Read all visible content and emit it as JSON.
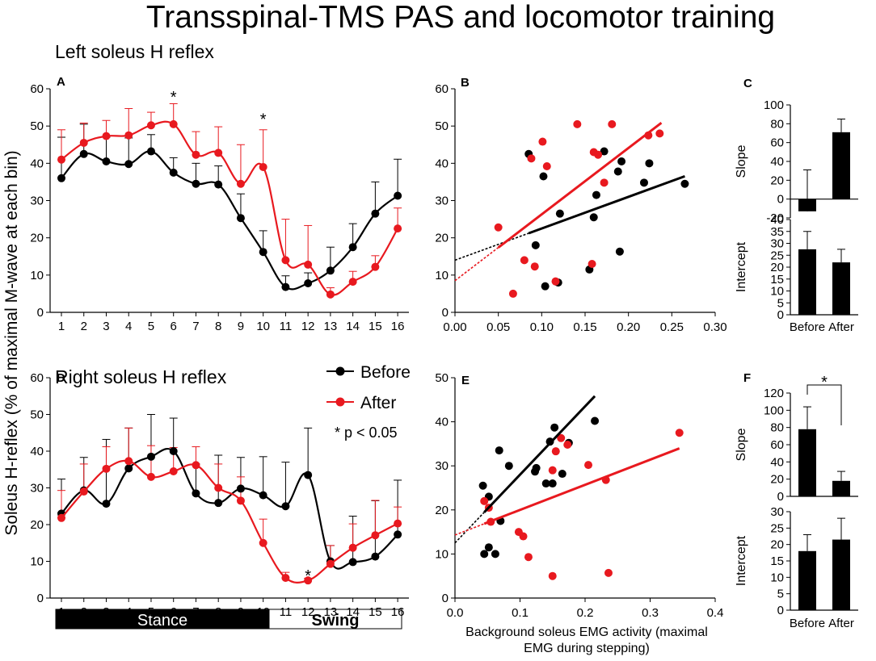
{
  "title": "Transspinal-TMS PAS and locomotor training",
  "section_left": "Left soleus H reflex",
  "section_right": "Right soleus H reflex",
  "shared_ylabel": "Soleus H-reflex (% of maximal M-wave at each bin)",
  "shared_xlabel_scatter": [
    "Background soleus EMG activity (maximal",
    "EMG during stepping)"
  ],
  "legend": {
    "before": "Before",
    "after": "After",
    "note": "* p < 0.05"
  },
  "phase_bar": {
    "stance": "Stance",
    "swing": "Swing"
  },
  "colors": {
    "before": "#000000",
    "after": "#e8191f"
  },
  "chart_data": [
    {
      "id": "A",
      "type": "line",
      "panel_label": "A",
      "x": [
        1,
        2,
        3,
        4,
        5,
        6,
        7,
        8,
        9,
        10,
        11,
        12,
        13,
        14,
        15,
        16
      ],
      "ylim": [
        0,
        60
      ],
      "yticks": [
        0,
        10,
        20,
        30,
        40,
        50,
        60
      ],
      "xticks": [
        "1",
        "2",
        "3",
        "4",
        "5",
        "6",
        "7",
        "8",
        "9",
        "10",
        "11",
        "12",
        "13",
        "14",
        "15",
        "16"
      ],
      "series": [
        {
          "name": "Before",
          "values": [
            36,
            42.5,
            40.5,
            39.8,
            43.2,
            37.5,
            34.5,
            34.3,
            25.3,
            16.2,
            6.8,
            7.8,
            11.2,
            17.5,
            26.5,
            31.3
          ],
          "errors": [
            11,
            8,
            6.5,
            7,
            4.5,
            4,
            5.5,
            5,
            6.5,
            5.7,
            3,
            2.8,
            6.3,
            6.3,
            8.5,
            9.8
          ]
        },
        {
          "name": "After",
          "values": [
            41,
            45.5,
            47.3,
            47.5,
            50.2,
            50.5,
            42.3,
            42.8,
            34.5,
            39,
            14,
            12.8,
            4.8,
            8.2,
            12.2,
            22.5
          ],
          "errors": [
            8,
            5.3,
            4.2,
            7.2,
            3.5,
            5.5,
            6.2,
            7,
            10.5,
            10,
            11,
            10.5,
            1.8,
            2.8,
            3,
            5.5
          ]
        }
      ],
      "annotations": [
        {
          "x": 6,
          "y": 58.5,
          "text": "*"
        },
        {
          "x": 10,
          "y": 52.5,
          "text": "*"
        }
      ]
    },
    {
      "id": "B",
      "type": "scatter",
      "panel_label": "B",
      "xlim": [
        0,
        0.3
      ],
      "ylim": [
        0,
        60
      ],
      "xticks": [
        0,
        0.05,
        0.1,
        0.15,
        0.2,
        0.25,
        0.3
      ],
      "xtick_labels": [
        "0.00",
        "0.05",
        "0.10",
        "0.15",
        "0.20",
        "0.25",
        "0.30"
      ],
      "yticks": [
        0,
        10,
        20,
        30,
        40,
        50,
        60
      ],
      "series": [
        {
          "name": "Before",
          "points": [
            [
              0.085,
              42.5
            ],
            [
              0.093,
              18
            ],
            [
              0.102,
              36.5
            ],
            [
              0.104,
              7
            ],
            [
              0.119,
              8
            ],
            [
              0.121,
              26.5
            ],
            [
              0.155,
              11.5
            ],
            [
              0.16,
              25.5
            ],
            [
              0.163,
              31.5
            ],
            [
              0.172,
              43.2
            ],
            [
              0.188,
              37.8
            ],
            [
              0.192,
              40.5
            ],
            [
              0.19,
              16.3
            ],
            [
              0.218,
              34.8
            ],
            [
              0.224,
              40
            ],
            [
              0.265,
              34.5
            ]
          ],
          "fit": {
            "slope": 85,
            "intercept": 14,
            "solid_from": 0.085,
            "solid_to": 0.265
          }
        },
        {
          "name": "After",
          "points": [
            [
              0.05,
              22.8
            ],
            [
              0.067,
              5
            ],
            [
              0.08,
              14
            ],
            [
              0.088,
              41.3
            ],
            [
              0.092,
              12.3
            ],
            [
              0.101,
              45.8
            ],
            [
              0.106,
              39.2
            ],
            [
              0.116,
              8.3
            ],
            [
              0.141,
              50.5
            ],
            [
              0.158,
              13
            ],
            [
              0.16,
              43
            ],
            [
              0.165,
              42.3
            ],
            [
              0.172,
              34.8
            ],
            [
              0.181,
              50.5
            ],
            [
              0.223,
              47.5
            ],
            [
              0.236,
              48
            ]
          ],
          "fit": {
            "slope": 178,
            "intercept": 8.5,
            "solid_from": 0.05,
            "solid_to": 0.238
          }
        }
      ]
    },
    {
      "id": "C1",
      "type": "bar",
      "panel_label": "C",
      "ylabel": "Slope",
      "categories": [
        "Before",
        "After"
      ],
      "values": [
        -13,
        71
      ],
      "errors": [
        44,
        14
      ],
      "ylim": [
        -20,
        100
      ],
      "yticks": [
        -20,
        0,
        20,
        40,
        60,
        80,
        100
      ]
    },
    {
      "id": "C2",
      "type": "bar",
      "ylabel": "Intercept",
      "categories": [
        "Before",
        "After"
      ],
      "values": [
        27.5,
        22
      ],
      "errors": [
        7.5,
        5.5
      ],
      "ylim": [
        0,
        40
      ],
      "yticks": [
        0,
        5,
        10,
        15,
        20,
        25,
        30,
        35,
        40
      ]
    },
    {
      "id": "D",
      "type": "line",
      "panel_label": "D",
      "x": [
        1,
        2,
        3,
        4,
        5,
        6,
        7,
        8,
        9,
        10,
        11,
        12,
        13,
        14,
        15,
        16
      ],
      "ylim": [
        0,
        60
      ],
      "yticks": [
        0,
        10,
        20,
        30,
        40,
        50,
        60
      ],
      "xticks": [
        "1",
        "2",
        "3",
        "4",
        "5",
        "6",
        "7",
        "8",
        "9",
        "10",
        "11",
        "12",
        "13",
        "14",
        "15",
        "16"
      ],
      "series": [
        {
          "name": "Before",
          "values": [
            23,
            29.3,
            25.7,
            35.3,
            38.5,
            40,
            28.5,
            25.9,
            29.8,
            28,
            25,
            33.5,
            10,
            9.8,
            11.3,
            17.3
          ],
          "errors": [
            9.4,
            9,
            17.5,
            11,
            11.5,
            9,
            8,
            13,
            8.5,
            10.5,
            12,
            12.8,
            4.3,
            12.5,
            15.2,
            14.8
          ]
        },
        {
          "name": "After",
          "values": [
            21.8,
            29,
            35.2,
            37.3,
            33,
            34.5,
            36.2,
            30,
            26.5,
            15,
            5.5,
            4.8,
            9.3,
            13.7,
            17.1,
            20.3
          ],
          "errors": [
            7.5,
            7.5,
            6,
            9,
            8.5,
            6.5,
            5,
            6.5,
            6.5,
            6.5,
            1.5,
            0.6,
            5,
            6.5,
            9.5,
            4.5
          ]
        }
      ],
      "annotations": [
        {
          "x": 12,
          "y": 6.8,
          "text": "*"
        }
      ]
    },
    {
      "id": "E",
      "type": "scatter",
      "panel_label": "E",
      "xlim": [
        0,
        0.4
      ],
      "ylim": [
        0,
        50
      ],
      "xticks": [
        0,
        0.1,
        0.2,
        0.3,
        0.4
      ],
      "xtick_labels": [
        "0.0",
        "0.1",
        "0.2",
        "0.3",
        "0.4"
      ],
      "yticks": [
        0,
        10,
        20,
        30,
        40,
        50
      ],
      "series": [
        {
          "name": "Before",
          "points": [
            [
              0.043,
              25.5
            ],
            [
              0.045,
              10
            ],
            [
              0.052,
              11.5
            ],
            [
              0.052,
              23
            ],
            [
              0.062,
              10
            ],
            [
              0.068,
              33.5
            ],
            [
              0.07,
              17.5
            ],
            [
              0.083,
              30
            ],
            [
              0.123,
              28.7
            ],
            [
              0.125,
              29.5
            ],
            [
              0.14,
              26
            ],
            [
              0.146,
              35.5
            ],
            [
              0.15,
              26
            ],
            [
              0.153,
              38.7
            ],
            [
              0.165,
              28.2
            ],
            [
              0.175,
              35.2
            ],
            [
              0.215,
              40.2
            ]
          ],
          "fit": {
            "slope": 155,
            "intercept": 12.5,
            "solid_from": 0.045,
            "solid_to": 0.215
          }
        },
        {
          "name": "After",
          "points": [
            [
              0.045,
              22
            ],
            [
              0.052,
              20.5
            ],
            [
              0.055,
              17.3
            ],
            [
              0.098,
              15
            ],
            [
              0.105,
              14
            ],
            [
              0.113,
              9.3
            ],
            [
              0.15,
              29
            ],
            [
              0.15,
              5
            ],
            [
              0.155,
              33.3
            ],
            [
              0.163,
              36.3
            ],
            [
              0.173,
              34.8
            ],
            [
              0.205,
              30.2
            ],
            [
              0.232,
              26.8
            ],
            [
              0.236,
              5.7
            ],
            [
              0.345,
              37.5
            ]
          ],
          "fit": {
            "slope": 57,
            "intercept": 14.3,
            "solid_from": 0.045,
            "solid_to": 0.345
          }
        }
      ]
    },
    {
      "id": "F1",
      "type": "bar",
      "panel_label": "F",
      "ylabel": "Slope",
      "categories": [
        "Before",
        "After"
      ],
      "values": [
        78,
        18
      ],
      "errors": [
        26,
        11
      ],
      "ylim": [
        0,
        120
      ],
      "yticks": [
        0,
        20,
        40,
        60,
        80,
        100,
        120
      ],
      "significance": "*"
    },
    {
      "id": "F2",
      "type": "bar",
      "ylabel": "Intercept",
      "categories": [
        "Before",
        "After"
      ],
      "values": [
        18,
        21.5
      ],
      "errors": [
        5,
        6.5
      ],
      "ylim": [
        0,
        30
      ],
      "yticks": [
        0,
        5,
        10,
        15,
        20,
        25,
        30
      ]
    }
  ]
}
